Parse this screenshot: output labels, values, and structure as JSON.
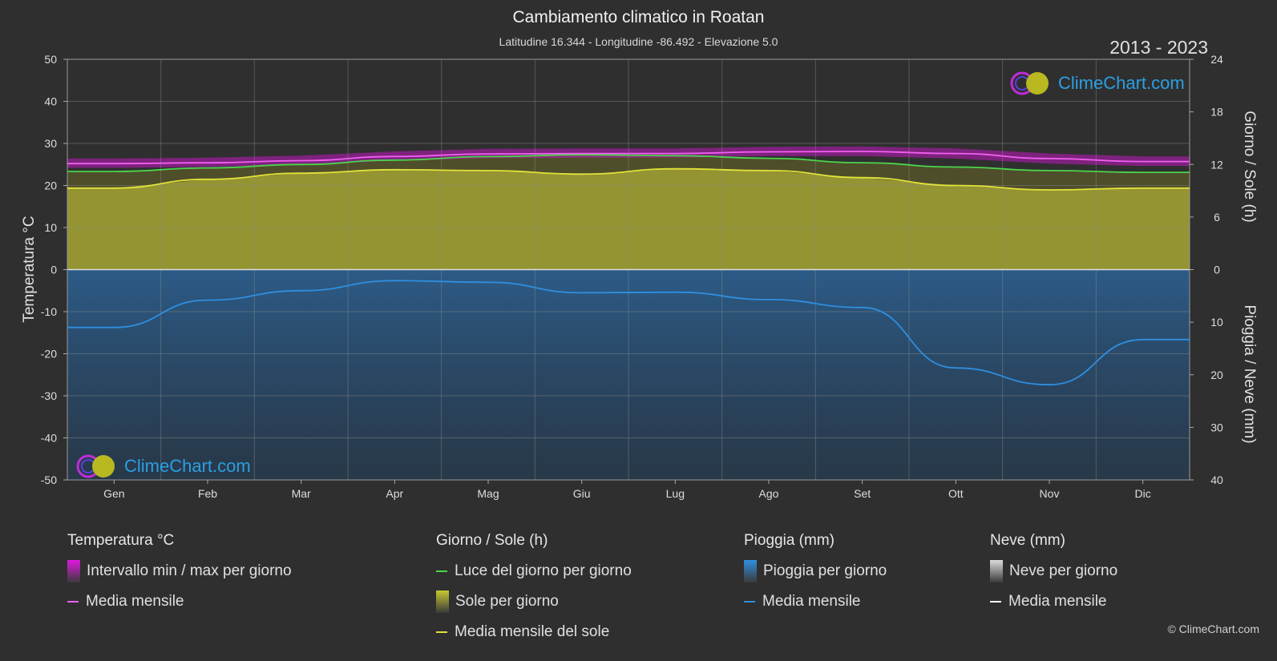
{
  "header": {
    "title": "Cambiamento climatico in Roatan",
    "subtitle": "Latitudine 16.344 - Longitudine -86.492 - Elevazione 5.0",
    "years": "2013 - 2023"
  },
  "logo_text": "ClimeChart.com",
  "copyright": "© ClimeChart.com",
  "axes": {
    "left_title": "Temperatura °C",
    "right_top_title": "Giorno / Sole (h)",
    "right_bottom_title": "Pioggia / Neve (mm)"
  },
  "chart_data": {
    "type": "area",
    "categories": [
      "Gen",
      "Feb",
      "Mar",
      "Apr",
      "Mag",
      "Giu",
      "Lug",
      "Ago",
      "Set",
      "Ott",
      "Nov",
      "Dic"
    ],
    "temp_axis": {
      "min": -50,
      "max": 50,
      "ticks": [
        50,
        40,
        30,
        20,
        10,
        0,
        -10,
        -20,
        -30,
        -40,
        -50
      ]
    },
    "sun_axis": {
      "min": 0,
      "max": 24,
      "ticks": [
        24,
        18,
        12,
        6,
        0
      ]
    },
    "rain_axis": {
      "min": 0,
      "max": 40,
      "ticks": [
        0,
        10,
        20,
        30,
        40
      ]
    },
    "series": [
      {
        "name": "Media mensile",
        "group": "temperature",
        "color": "#f060f0",
        "values": [
          25.2,
          25.4,
          25.9,
          26.9,
          27.5,
          27.6,
          27.6,
          28.0,
          28.1,
          27.6,
          26.4,
          25.7
        ]
      },
      {
        "name": "Luce del giorno per giorno",
        "group": "daylight",
        "color": "#4cd44c",
        "values": [
          11.2,
          11.6,
          12.0,
          12.5,
          12.9,
          13.1,
          13.0,
          12.7,
          12.2,
          11.7,
          11.3,
          11.1
        ]
      },
      {
        "name": "Media mensile del sole",
        "group": "sun",
        "color": "#e2e23a",
        "values": [
          9.3,
          10.3,
          11.0,
          11.4,
          11.3,
          10.9,
          11.5,
          11.3,
          10.5,
          9.6,
          9.1,
          9.3
        ]
      },
      {
        "name": "Media mensile",
        "group": "rain",
        "color": "#2f8fe0",
        "values": [
          11.0,
          5.8,
          4.0,
          2.1,
          2.4,
          4.4,
          4.3,
          5.7,
          7.2,
          18.7,
          21.9,
          13.3
        ]
      }
    ],
    "temp_range_band": {
      "min": [
        24.2,
        24.4,
        24.9,
        25.9,
        26.5,
        26.6,
        26.6,
        27.0,
        27.0,
        26.4,
        25.2,
        24.6
      ],
      "max": [
        26.4,
        26.6,
        27.1,
        28.1,
        28.7,
        28.8,
        28.8,
        29.2,
        29.3,
        28.8,
        27.6,
        26.9
      ]
    }
  },
  "legend": [
    {
      "heading": "Temperatura °C",
      "items": [
        {
          "label": "Intervallo min / max per giorno",
          "kind": "box",
          "color": "#e018e0"
        },
        {
          "label": "Media mensile",
          "kind": "line",
          "color": "#f060f0"
        }
      ]
    },
    {
      "heading": "Giorno / Sole (h)",
      "items": [
        {
          "label": "Luce del giorno per giorno",
          "kind": "line",
          "color": "#4cd44c"
        },
        {
          "label": "Sole per giorno",
          "kind": "box",
          "color": "#c8c832"
        },
        {
          "label": "Media mensile del sole",
          "kind": "line",
          "color": "#e2e23a"
        }
      ]
    },
    {
      "heading": "Pioggia (mm)",
      "items": [
        {
          "label": "Pioggia per giorno",
          "kind": "box",
          "color": "#2f8fe0"
        },
        {
          "label": "Media mensile",
          "kind": "line",
          "color": "#2f8fe0"
        }
      ]
    },
    {
      "heading": "Neve (mm)",
      "items": [
        {
          "label": "Neve per giorno",
          "kind": "box",
          "color": "#dddddd"
        },
        {
          "label": "Media mensile",
          "kind": "line",
          "color": "#ffffff"
        }
      ]
    }
  ]
}
